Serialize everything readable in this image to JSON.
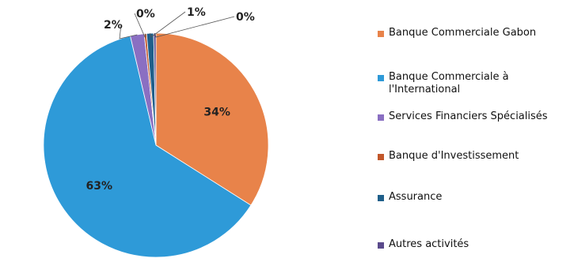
{
  "chart_data": {
    "type": "pie",
    "title": "",
    "slices": [
      {
        "label": "Banque Commerciale Gabon",
        "value": 34,
        "value_label": "34%",
        "color": "#e8834a"
      },
      {
        "label": "Banque Commerciale à l'International",
        "value": 63,
        "value_label": "63%",
        "color": "#2e9ad8"
      },
      {
        "label": "Services Financiers Spécialisés",
        "value": 2,
        "value_label": "2%",
        "color": "#8a6fc2"
      },
      {
        "label": "Banque d'Investissement",
        "value": 0,
        "value_label": "0%",
        "color": "#c2572a"
      },
      {
        "label": "Assurance",
        "value": 1,
        "value_label": "1%",
        "color": "#1f5f8a"
      },
      {
        "label": "Autres activités",
        "value": 0,
        "value_label": "0%",
        "color": "#5a4a8c"
      }
    ],
    "legend_position": "right"
  }
}
